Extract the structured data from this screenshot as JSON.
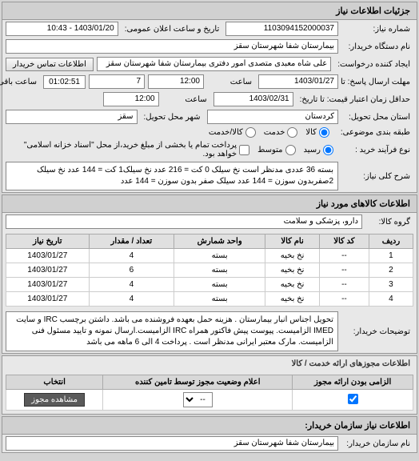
{
  "header": {
    "title": "جزئیات اطلاعات نیاز"
  },
  "form": {
    "request_no_label": "شماره نیاز:",
    "request_no": "1103094152000037",
    "announce_date_label": "تاریخ و ساعت اعلان عمومی:",
    "announce_date": "1403/01/20 - 10:43",
    "buyer_name_label": "نام دستگاه خریدار:",
    "buyer_name": "بیمارستان شفا شهرستان سقز",
    "requester_label": "ایجاد کننده درخواست:",
    "requester": "علی شاه معبدی متصدی امور دفتری بیمارستان شفا شهرستان سقز",
    "contact_btn": "اطلاعات تماس خریدار",
    "deadline_label": "مهلت ارسال پاسخ: تا تاریخ:",
    "deadline_date": "1403/01/27",
    "time_label": "ساعت",
    "deadline_time": "12:00",
    "remaining_days": "7",
    "remaining_label": "ساعت باقی مانده",
    "countdown": "01:02:51",
    "price_until_label": "حداقل زمان اعتبار قیمت: تا تاریخ:",
    "price_until_date": "1403/02/31",
    "price_until_time": "12:00",
    "province_label": "استان محل تحویل:",
    "province": "کردستان",
    "city_label": "شهر محل تحویل:",
    "city": "سقز",
    "priority_label": "طبقه بندی موضوعی:",
    "priority_opts": {
      "a": "کالا",
      "b": "خدمت",
      "c": "کالا/خدمت"
    },
    "payment_label": "نوع فرآیند خرید :",
    "payment_opts": {
      "a": "رسید",
      "b": "متوسط",
      "c": "پرداخت تمام یا بخشی از مبلغ خرید،از محل \"اسناد خزانه اسلامی\" خواهد بود."
    },
    "desc_label": "شرح کلی نیاز:",
    "desc": "بسته 36 عددی مدنظر است نخ سیلک 0 کت = 216 عدد نخ سیلک1 کت = 144 عدد نخ سیلک 2صفربدون سوزن = 144 عدد سیلک صفر بدون سوزن = 144 عدد"
  },
  "goods_section": {
    "title": "اطلاعات کالاهای مورد نیاز",
    "group_label": "گروه کالا:",
    "group": "دارو، پزشکی و سلامت",
    "columns": [
      "ردیف",
      "کد کالا",
      "نام کالا",
      "واحد شمارش",
      "تعداد / مقدار",
      "تاریخ نیاز"
    ],
    "rows": [
      [
        "1",
        "--",
        "نخ بخیه",
        "بسته",
        "4",
        "1403/01/27"
      ],
      [
        "2",
        "--",
        "نخ بخیه",
        "بسته",
        "6",
        "1403/01/27"
      ],
      [
        "3",
        "--",
        "نخ بخیه",
        "بسته",
        "4",
        "1403/01/27"
      ],
      [
        "4",
        "--",
        "نخ بخیه",
        "بسته",
        "4",
        "1403/01/27"
      ]
    ]
  },
  "buyer_desc": {
    "label": "توضیحات خریدار:",
    "text": "تحویل اجناس انبار بیمارستان . هزینه حمل بعهده فروشنده می باشد. داشتن برچسب IRC و سایت IMED الزامیست. پیوست پیش فاکتور همراه IRC الزامیست.ارسال نمونه و تایید مسئول فنی الزامیست. مارک معتبر ایرانی مدنظر است . پرداخت 4 الی 6 ماهه می باشد"
  },
  "permits": {
    "title": "اطلاعات مجوزهای ارائه خدمت / کالا",
    "columns": [
      "الزامی بودن ارائه مجوز",
      "اعلام وضعیت مجوز توسط تامین کننده",
      "انتخاب"
    ],
    "row": {
      "c0": "✓",
      "c1": "--",
      "c2_btn": "مشاهده مجوز"
    }
  },
  "org_section": {
    "title": "اطلاعات نیاز سازمان خریدار:",
    "org_label": "نام سازمان خریدار:",
    "org_name": "بیمارستان شفا شهرستان سقز"
  }
}
